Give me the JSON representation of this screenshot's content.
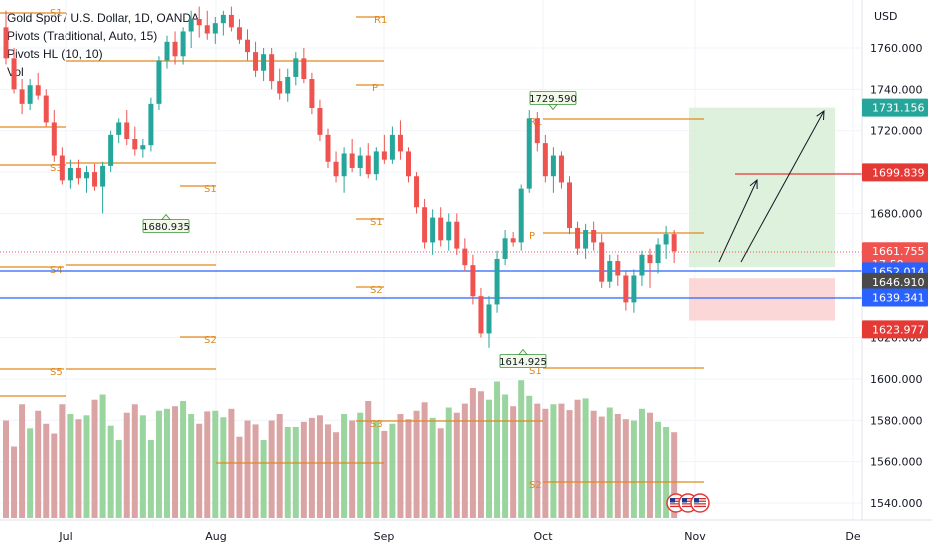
{
  "legend": {
    "title": "Gold Spot / U.S. Dollar, 1D, OANDA",
    "pivots_trad": "Pivots (Traditional, Auto, 15)",
    "pivots_hl": "Pivots HL (10, 10)",
    "vol": "Vol"
  },
  "colors": {
    "up": "#26a69a",
    "down": "#ef5350",
    "pivot": "#e0891a",
    "blue_line": "#2962ff",
    "target_zone": "#d8efd6",
    "stop_zone": "#fbd3d3"
  },
  "chart_data": {
    "type": "candlestick",
    "currency_label": "USD",
    "y_ticks": [
      "1760.000",
      "1740.000",
      "1720.000",
      "1700.000",
      "1680.000",
      "1660.000",
      "1640.000",
      "1620.000",
      "1600.000",
      "1580.000",
      "1560.000",
      "1540.000"
    ],
    "ylim": [
      1534,
      1772
    ],
    "x_ticks": [
      "Jul",
      "Aug",
      "Sep",
      "Oct",
      "Nov",
      "De"
    ],
    "price_tags": [
      {
        "label": "1731.156",
        "value": 1731.156,
        "bg": "#26a69a",
        "fg": "#ffffff"
      },
      {
        "label": "1699.839",
        "value": 1699.839,
        "bg": "#e53935",
        "fg": "#ffffff"
      },
      {
        "label": "1661.755",
        "value": 1661.755,
        "bg": "#ef5350",
        "fg": "#ffffff",
        "sub": "17:59"
      },
      {
        "label": "1652.014",
        "value": 1652.014,
        "bg": "#2962ff",
        "fg": "#ffffff"
      },
      {
        "label": "1646.910",
        "value": 1646.91,
        "bg": "#4a4a4a",
        "fg": "#ffffff"
      },
      {
        "label": "1639.341",
        "value": 1639.341,
        "bg": "#2962ff",
        "fg": "#ffffff"
      },
      {
        "label": "1623.977",
        "value": 1623.977,
        "bg": "#e53935",
        "fg": "#ffffff"
      }
    ],
    "pivot_highlow_labels": [
      {
        "label": "1680.935",
        "value": 1680.935,
        "type": "low"
      },
      {
        "label": "1729.590",
        "value": 1729.59,
        "type": "high"
      },
      {
        "label": "1614.925",
        "value": 1614.925,
        "type": "low"
      }
    ],
    "pivot_levels": [
      {
        "label": "S1",
        "value": 1771
      },
      {
        "label": "S3",
        "value": 1662
      },
      {
        "label": "S4",
        "value": 1660
      },
      {
        "label": "S5",
        "value": 1626
      },
      {
        "label": "R1",
        "value": 1765
      },
      {
        "label": "P",
        "value": 1742
      },
      {
        "label": "S1",
        "value": 1690
      },
      {
        "label": "S2",
        "value": 1640
      },
      {
        "label": "S1",
        "value": 1680
      },
      {
        "label": "S2",
        "value": 1655
      },
      {
        "label": "S3",
        "value": 1578
      },
      {
        "label": "R1",
        "value": 1726
      },
      {
        "label": "P",
        "value": 1671
      },
      {
        "label": "S1",
        "value": 1625
      },
      {
        "label": "S2",
        "value": 1549
      }
    ],
    "horizontal_lines": [
      1652.014,
      1646.91
    ],
    "trade_box": {
      "entry": 1654,
      "target": 1731.156,
      "stop": 1639.341
    },
    "candles": [
      {
        "o": 1770,
        "h": 1778,
        "l": 1752,
        "c": 1755
      },
      {
        "o": 1755,
        "h": 1760,
        "l": 1738,
        "c": 1740
      },
      {
        "o": 1740,
        "h": 1745,
        "l": 1728,
        "c": 1733
      },
      {
        "o": 1733,
        "h": 1745,
        "l": 1730,
        "c": 1742
      },
      {
        "o": 1742,
        "h": 1748,
        "l": 1735,
        "c": 1737
      },
      {
        "o": 1737,
        "h": 1740,
        "l": 1722,
        "c": 1724
      },
      {
        "o": 1724,
        "h": 1730,
        "l": 1705,
        "c": 1708
      },
      {
        "o": 1708,
        "h": 1712,
        "l": 1694,
        "c": 1696
      },
      {
        "o": 1696,
        "h": 1706,
        "l": 1692,
        "c": 1702
      },
      {
        "o": 1702,
        "h": 1706,
        "l": 1694,
        "c": 1697
      },
      {
        "o": 1697,
        "h": 1703,
        "l": 1690,
        "c": 1700
      },
      {
        "o": 1700,
        "h": 1704,
        "l": 1691,
        "c": 1693
      },
      {
        "o": 1693,
        "h": 1705,
        "l": 1680,
        "c": 1703
      },
      {
        "o": 1703,
        "h": 1720,
        "l": 1700,
        "c": 1718
      },
      {
        "o": 1718,
        "h": 1726,
        "l": 1714,
        "c": 1724
      },
      {
        "o": 1724,
        "h": 1730,
        "l": 1713,
        "c": 1716
      },
      {
        "o": 1716,
        "h": 1722,
        "l": 1708,
        "c": 1711
      },
      {
        "o": 1711,
        "h": 1716,
        "l": 1707,
        "c": 1713
      },
      {
        "o": 1713,
        "h": 1736,
        "l": 1710,
        "c": 1733
      },
      {
        "o": 1733,
        "h": 1756,
        "l": 1730,
        "c": 1754
      },
      {
        "o": 1754,
        "h": 1766,
        "l": 1750,
        "c": 1763
      },
      {
        "o": 1763,
        "h": 1768,
        "l": 1752,
        "c": 1756
      },
      {
        "o": 1756,
        "h": 1770,
        "l": 1752,
        "c": 1768
      },
      {
        "o": 1768,
        "h": 1778,
        "l": 1760,
        "c": 1774
      },
      {
        "o": 1774,
        "h": 1780,
        "l": 1765,
        "c": 1771
      },
      {
        "o": 1771,
        "h": 1778,
        "l": 1764,
        "c": 1767
      },
      {
        "o": 1767,
        "h": 1775,
        "l": 1762,
        "c": 1772
      },
      {
        "o": 1772,
        "h": 1778,
        "l": 1766,
        "c": 1776
      },
      {
        "o": 1776,
        "h": 1780,
        "l": 1768,
        "c": 1770
      },
      {
        "o": 1770,
        "h": 1774,
        "l": 1762,
        "c": 1764
      },
      {
        "o": 1764,
        "h": 1769,
        "l": 1754,
        "c": 1758
      },
      {
        "o": 1758,
        "h": 1763,
        "l": 1746,
        "c": 1749
      },
      {
        "o": 1749,
        "h": 1760,
        "l": 1744,
        "c": 1757
      },
      {
        "o": 1757,
        "h": 1760,
        "l": 1740,
        "c": 1744
      },
      {
        "o": 1744,
        "h": 1750,
        "l": 1735,
        "c": 1738
      },
      {
        "o": 1738,
        "h": 1750,
        "l": 1734,
        "c": 1746
      },
      {
        "o": 1746,
        "h": 1758,
        "l": 1742,
        "c": 1755
      },
      {
        "o": 1755,
        "h": 1760,
        "l": 1743,
        "c": 1745
      },
      {
        "o": 1745,
        "h": 1748,
        "l": 1728,
        "c": 1731
      },
      {
        "o": 1731,
        "h": 1735,
        "l": 1715,
        "c": 1718
      },
      {
        "o": 1718,
        "h": 1721,
        "l": 1702,
        "c": 1705
      },
      {
        "o": 1705,
        "h": 1710,
        "l": 1695,
        "c": 1698
      },
      {
        "o": 1698,
        "h": 1712,
        "l": 1690,
        "c": 1709
      },
      {
        "o": 1709,
        "h": 1716,
        "l": 1700,
        "c": 1702
      },
      {
        "o": 1702,
        "h": 1712,
        "l": 1698,
        "c": 1708
      },
      {
        "o": 1708,
        "h": 1714,
        "l": 1697,
        "c": 1699
      },
      {
        "o": 1699,
        "h": 1712,
        "l": 1696,
        "c": 1710
      },
      {
        "o": 1710,
        "h": 1718,
        "l": 1704,
        "c": 1706
      },
      {
        "o": 1706,
        "h": 1722,
        "l": 1704,
        "c": 1718
      },
      {
        "o": 1718,
        "h": 1725,
        "l": 1706,
        "c": 1710
      },
      {
        "o": 1710,
        "h": 1712,
        "l": 1695,
        "c": 1698
      },
      {
        "o": 1698,
        "h": 1700,
        "l": 1680,
        "c": 1683
      },
      {
        "o": 1683,
        "h": 1687,
        "l": 1663,
        "c": 1666
      },
      {
        "o": 1666,
        "h": 1682,
        "l": 1660,
        "c": 1678
      },
      {
        "o": 1678,
        "h": 1683,
        "l": 1664,
        "c": 1667
      },
      {
        "o": 1667,
        "h": 1680,
        "l": 1662,
        "c": 1676
      },
      {
        "o": 1676,
        "h": 1680,
        "l": 1660,
        "c": 1663
      },
      {
        "o": 1663,
        "h": 1668,
        "l": 1652,
        "c": 1655
      },
      {
        "o": 1655,
        "h": 1660,
        "l": 1636,
        "c": 1640
      },
      {
        "o": 1640,
        "h": 1644,
        "l": 1620,
        "c": 1622
      },
      {
        "o": 1622,
        "h": 1640,
        "l": 1615,
        "c": 1636
      },
      {
        "o": 1636,
        "h": 1662,
        "l": 1632,
        "c": 1658
      },
      {
        "o": 1658,
        "h": 1672,
        "l": 1655,
        "c": 1668
      },
      {
        "o": 1668,
        "h": 1671,
        "l": 1664,
        "c": 1666
      },
      {
        "o": 1666,
        "h": 1694,
        "l": 1662,
        "c": 1692
      },
      {
        "o": 1692,
        "h": 1730,
        "l": 1690,
        "c": 1726
      },
      {
        "o": 1726,
        "h": 1729,
        "l": 1710,
        "c": 1714
      },
      {
        "o": 1714,
        "h": 1718,
        "l": 1695,
        "c": 1698
      },
      {
        "o": 1698,
        "h": 1712,
        "l": 1690,
        "c": 1708
      },
      {
        "o": 1708,
        "h": 1710,
        "l": 1692,
        "c": 1695
      },
      {
        "o": 1695,
        "h": 1698,
        "l": 1670,
        "c": 1673
      },
      {
        "o": 1673,
        "h": 1676,
        "l": 1660,
        "c": 1663
      },
      {
        "o": 1663,
        "h": 1675,
        "l": 1658,
        "c": 1672
      },
      {
        "o": 1672,
        "h": 1676,
        "l": 1662,
        "c": 1666
      },
      {
        "o": 1666,
        "h": 1670,
        "l": 1644,
        "c": 1647
      },
      {
        "o": 1647,
        "h": 1660,
        "l": 1644,
        "c": 1657
      },
      {
        "o": 1657,
        "h": 1660,
        "l": 1645,
        "c": 1650
      },
      {
        "o": 1650,
        "h": 1652,
        "l": 1633,
        "c": 1637
      },
      {
        "o": 1637,
        "h": 1653,
        "l": 1632,
        "c": 1650
      },
      {
        "o": 1650,
        "h": 1662,
        "l": 1645,
        "c": 1660
      },
      {
        "o": 1660,
        "h": 1663,
        "l": 1644,
        "c": 1656
      },
      {
        "o": 1656,
        "h": 1668,
        "l": 1651,
        "c": 1665
      },
      {
        "o": 1665,
        "h": 1674,
        "l": 1658,
        "c": 1670
      },
      {
        "o": 1670,
        "h": 1672,
        "l": 1656,
        "c": 1661.755
      }
    ],
    "volume": [
      150,
      110,
      175,
      138,
      165,
      145,
      130,
      175,
      160,
      152,
      158,
      182,
      190,
      142,
      120,
      162,
      175,
      158,
      120,
      165,
      168,
      172,
      180,
      160,
      145,
      164,
      165,
      155,
      168,
      125,
      150,
      144,
      120,
      150,
      160,
      140,
      140,
      148,
      154,
      158,
      144,
      132,
      160,
      150,
      162,
      180,
      150,
      134,
      145,
      160,
      152,
      165,
      178,
      154,
      138,
      170,
      162,
      176,
      200,
      195,
      182,
      210,
      190,
      172,
      212,
      188,
      176,
      168,
      175,
      176,
      166,
      182,
      184,
      165,
      156,
      170,
      160,
      152,
      150,
      168,
      162,
      148,
      140,
      132
    ]
  }
}
